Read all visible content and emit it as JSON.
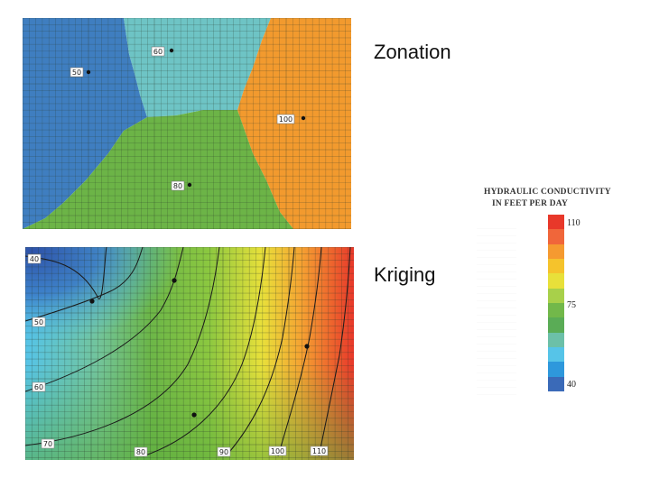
{
  "captions": {
    "zonation": "Zonation",
    "kriging": "Kriging"
  },
  "zonation": {
    "zones": [
      {
        "label": "50",
        "color": "#3f7ec0"
      },
      {
        "label": "60",
        "color": "#6ec4c5"
      },
      {
        "label": "80",
        "color": "#6cb447"
      },
      {
        "label": "100",
        "color": "#f29a2e"
      }
    ]
  },
  "kriging": {
    "contour_labels": [
      "40",
      "50",
      "60",
      "70",
      "80",
      "90",
      "100",
      "110"
    ]
  },
  "legend": {
    "title_line1": "HYDRAULIC CONDUCTIVITY",
    "title_line2": "IN FEET PER DAY",
    "ticks": [
      "110",
      "75",
      "40"
    ],
    "colors": [
      "#e8382a",
      "#f0663a",
      "#f59a30",
      "#f5c32c",
      "#e8e03a",
      "#a8d04a",
      "#72b84a",
      "#5aac56",
      "#6cc0a8",
      "#56c4e8",
      "#2e98dc",
      "#3a6ab8"
    ]
  },
  "colors": {
    "grid_line": "#2a3a2a",
    "contour_line": "#1a1a1a"
  }
}
